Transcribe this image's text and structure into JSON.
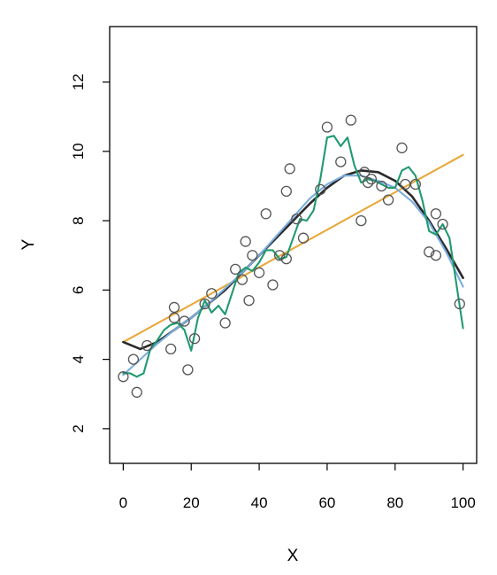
{
  "chart_data": {
    "type": "scatter",
    "title": "",
    "xlabel": "X",
    "ylabel": "Y",
    "xlim": [
      -4,
      104
    ],
    "ylim": [
      1,
      13.6
    ],
    "grid": false,
    "legend": "none",
    "xticks": [
      0,
      20,
      40,
      60,
      80,
      100
    ],
    "yticks": [
      2,
      4,
      6,
      8,
      10,
      12
    ],
    "points": {
      "color": "#555555",
      "x": [
        0,
        3,
        4,
        7,
        14,
        15,
        15,
        18,
        19,
        21,
        24,
        26,
        30,
        33,
        35,
        36,
        37,
        38,
        40,
        42,
        44,
        46,
        48,
        48,
        49,
        51,
        53,
        58,
        60,
        64,
        67,
        70,
        71,
        72,
        73,
        76,
        78,
        82,
        83,
        86,
        90,
        92,
        92,
        94,
        99
      ],
      "y": [
        3.5,
        4.0,
        3.05,
        4.4,
        4.3,
        5.2,
        5.5,
        5.1,
        3.7,
        4.6,
        5.6,
        5.9,
        5.05,
        6.6,
        6.3,
        7.4,
        5.7,
        7.0,
        6.5,
        8.2,
        6.15,
        7.0,
        8.85,
        6.9,
        9.5,
        8.05,
        7.5,
        8.9,
        10.7,
        9.7,
        10.9,
        8.0,
        9.4,
        9.1,
        9.2,
        9.0,
        8.6,
        10.1,
        9.05,
        9.05,
        7.1,
        8.2,
        7.0,
        7.9,
        5.6
      ]
    },
    "series": [
      {
        "kind": "linear-fit",
        "color": "#e8a93a",
        "x": [
          0,
          100
        ],
        "y": [
          4.5,
          9.9
        ]
      },
      {
        "kind": "true-function",
        "color": "#2a2a2a",
        "x": [
          0,
          5,
          10,
          15,
          20,
          25,
          30,
          35,
          40,
          45,
          50,
          55,
          60,
          65,
          70,
          75,
          80,
          85,
          90,
          95,
          100
        ],
        "y": [
          4.5,
          4.3,
          4.5,
          4.85,
          5.2,
          5.6,
          6.0,
          6.5,
          7.0,
          7.5,
          8.0,
          8.5,
          8.95,
          9.3,
          9.45,
          9.4,
          9.15,
          8.7,
          8.0,
          7.2,
          6.35
        ]
      },
      {
        "kind": "smooth-fit",
        "color": "#7aaee0",
        "x": [
          0,
          5,
          10,
          15,
          20,
          25,
          30,
          35,
          40,
          45,
          50,
          55,
          60,
          65,
          70,
          75,
          80,
          85,
          90,
          95,
          100
        ],
        "y": [
          3.55,
          4.0,
          4.45,
          4.85,
          5.2,
          5.6,
          6.05,
          6.5,
          7.0,
          7.55,
          8.1,
          8.65,
          9.05,
          9.3,
          9.3,
          9.15,
          8.95,
          8.55,
          7.95,
          7.1,
          6.1
        ]
      },
      {
        "kind": "flexible-fit",
        "color": "#1f9a6e",
        "x": [
          0,
          2,
          4,
          6,
          8,
          10,
          12,
          14,
          16,
          18,
          20,
          22,
          24,
          26,
          28,
          30,
          32,
          34,
          36,
          38,
          40,
          42,
          44,
          46,
          48,
          50,
          52,
          54,
          56,
          58,
          60,
          62,
          64,
          66,
          68,
          70,
          72,
          74,
          76,
          78,
          80,
          82,
          84,
          86,
          88,
          90,
          92,
          94,
          96,
          98,
          100
        ],
        "y": [
          3.6,
          3.6,
          3.5,
          3.6,
          4.3,
          4.55,
          4.85,
          5.0,
          5.05,
          4.85,
          4.25,
          5.2,
          5.7,
          5.35,
          5.55,
          5.3,
          5.9,
          6.5,
          6.65,
          6.55,
          6.8,
          7.15,
          7.15,
          6.9,
          6.95,
          7.5,
          8.05,
          8.0,
          8.3,
          9.2,
          10.4,
          10.45,
          10.15,
          10.4,
          9.6,
          9.1,
          9.2,
          9.15,
          9.05,
          8.95,
          8.95,
          9.45,
          9.55,
          9.3,
          8.6,
          7.7,
          7.6,
          7.9,
          7.5,
          6.2,
          4.9
        ]
      }
    ]
  }
}
